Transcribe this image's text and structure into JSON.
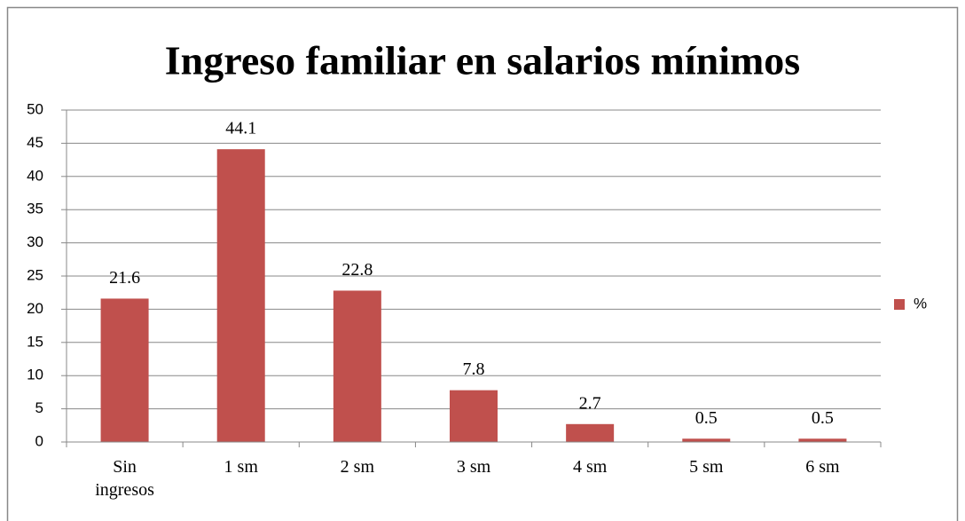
{
  "chart_data": {
    "type": "bar",
    "title": "Ingreso familiar en salarios mínimos",
    "categories": [
      "Sin ingresos",
      "1 sm",
      "2 sm",
      "3 sm",
      "4 sm",
      "5 sm",
      "6 sm"
    ],
    "series": [
      {
        "name": "%",
        "color": "#c0504d",
        "values": [
          21.6,
          44.1,
          22.8,
          7.8,
          2.7,
          0.5,
          0.5
        ]
      }
    ],
    "ylim": [
      0,
      50
    ],
    "yticks": [
      0,
      5,
      10,
      15,
      20,
      25,
      30,
      35,
      40,
      45,
      50
    ],
    "grid": true,
    "legend": "right"
  }
}
